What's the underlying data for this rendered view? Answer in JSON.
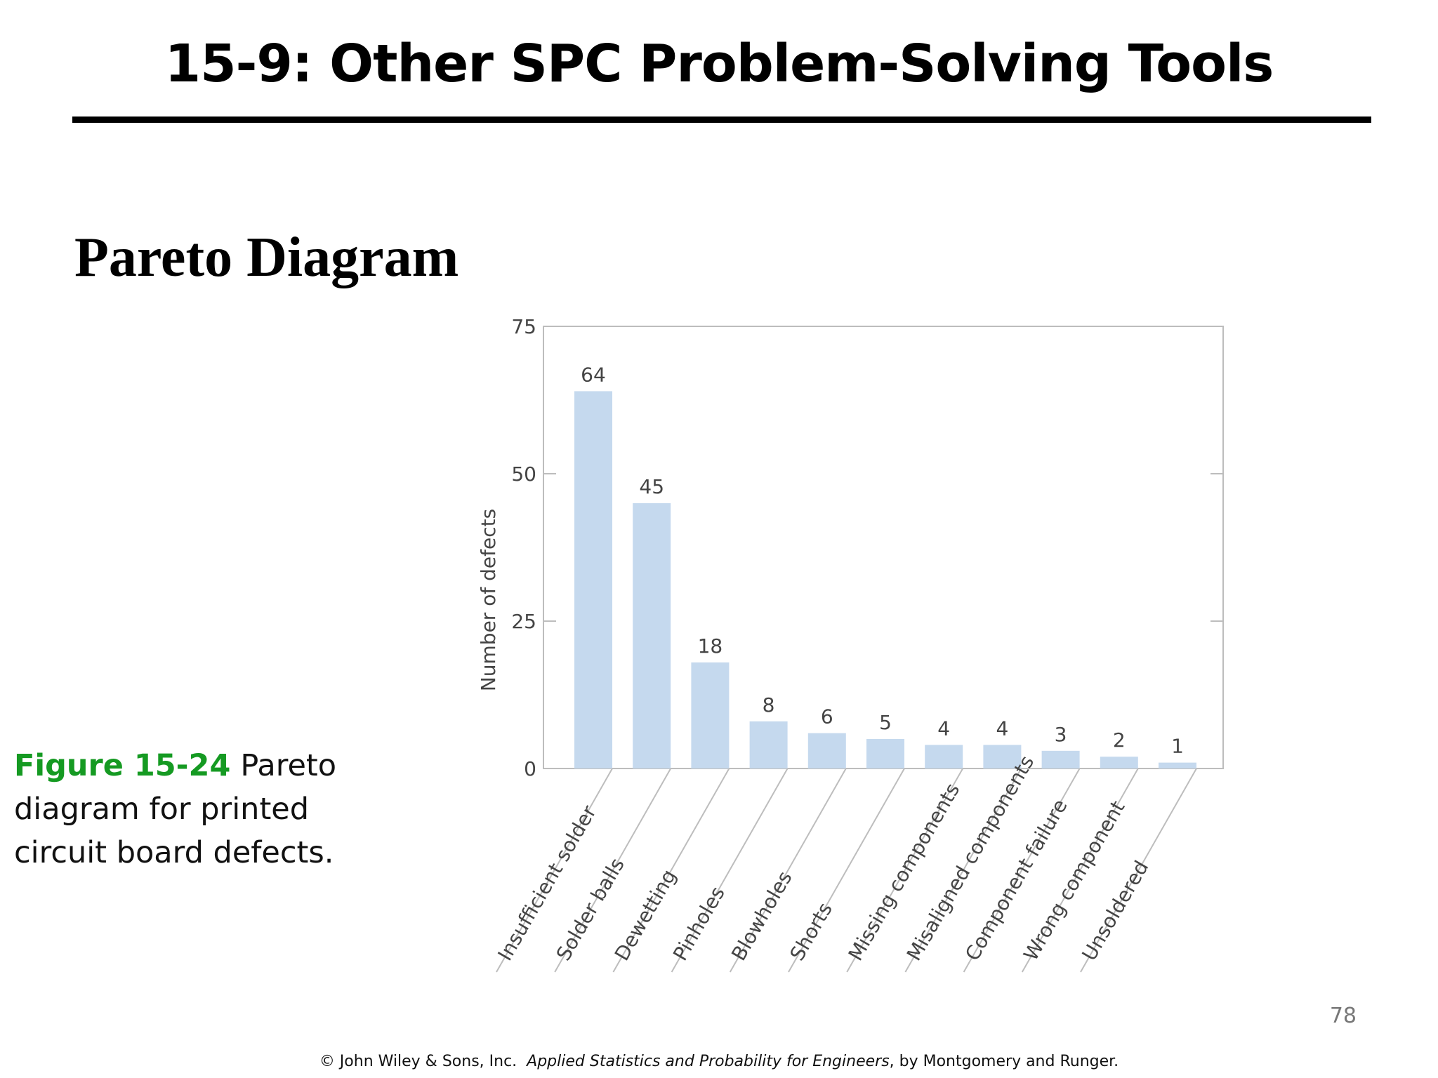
{
  "slide": {
    "title": "15-9: Other SPC Problem-Solving Tools",
    "section_heading": "Pareto Diagram",
    "caption": {
      "figure_label": "Figure 15-24",
      "text": "Pareto diagram for printed circuit board defects."
    },
    "page_number": "78",
    "footer": {
      "prefix": "© John Wiley & Sons, Inc.",
      "book_title": "Applied Statistics and Probability for Engineers",
      "suffix": ", by Montgomery and Runger."
    }
  },
  "chart_data": {
    "type": "bar",
    "ylabel": "Number of defects",
    "xlabel": "",
    "ylim": [
      0,
      75
    ],
    "yticks": [
      0,
      25,
      50,
      75
    ],
    "categories": [
      "Insufficient solder",
      "Solder balls",
      "Dewetting",
      "Pinholes",
      "Blowholes",
      "Shorts",
      "Missing components",
      "Misaligned components",
      "Component failure",
      "Wrong component",
      "Unsoldered"
    ],
    "values": [
      64,
      45,
      18,
      8,
      6,
      5,
      4,
      4,
      3,
      2,
      1
    ],
    "bar_color": "#c5d9ee",
    "grid": false
  }
}
